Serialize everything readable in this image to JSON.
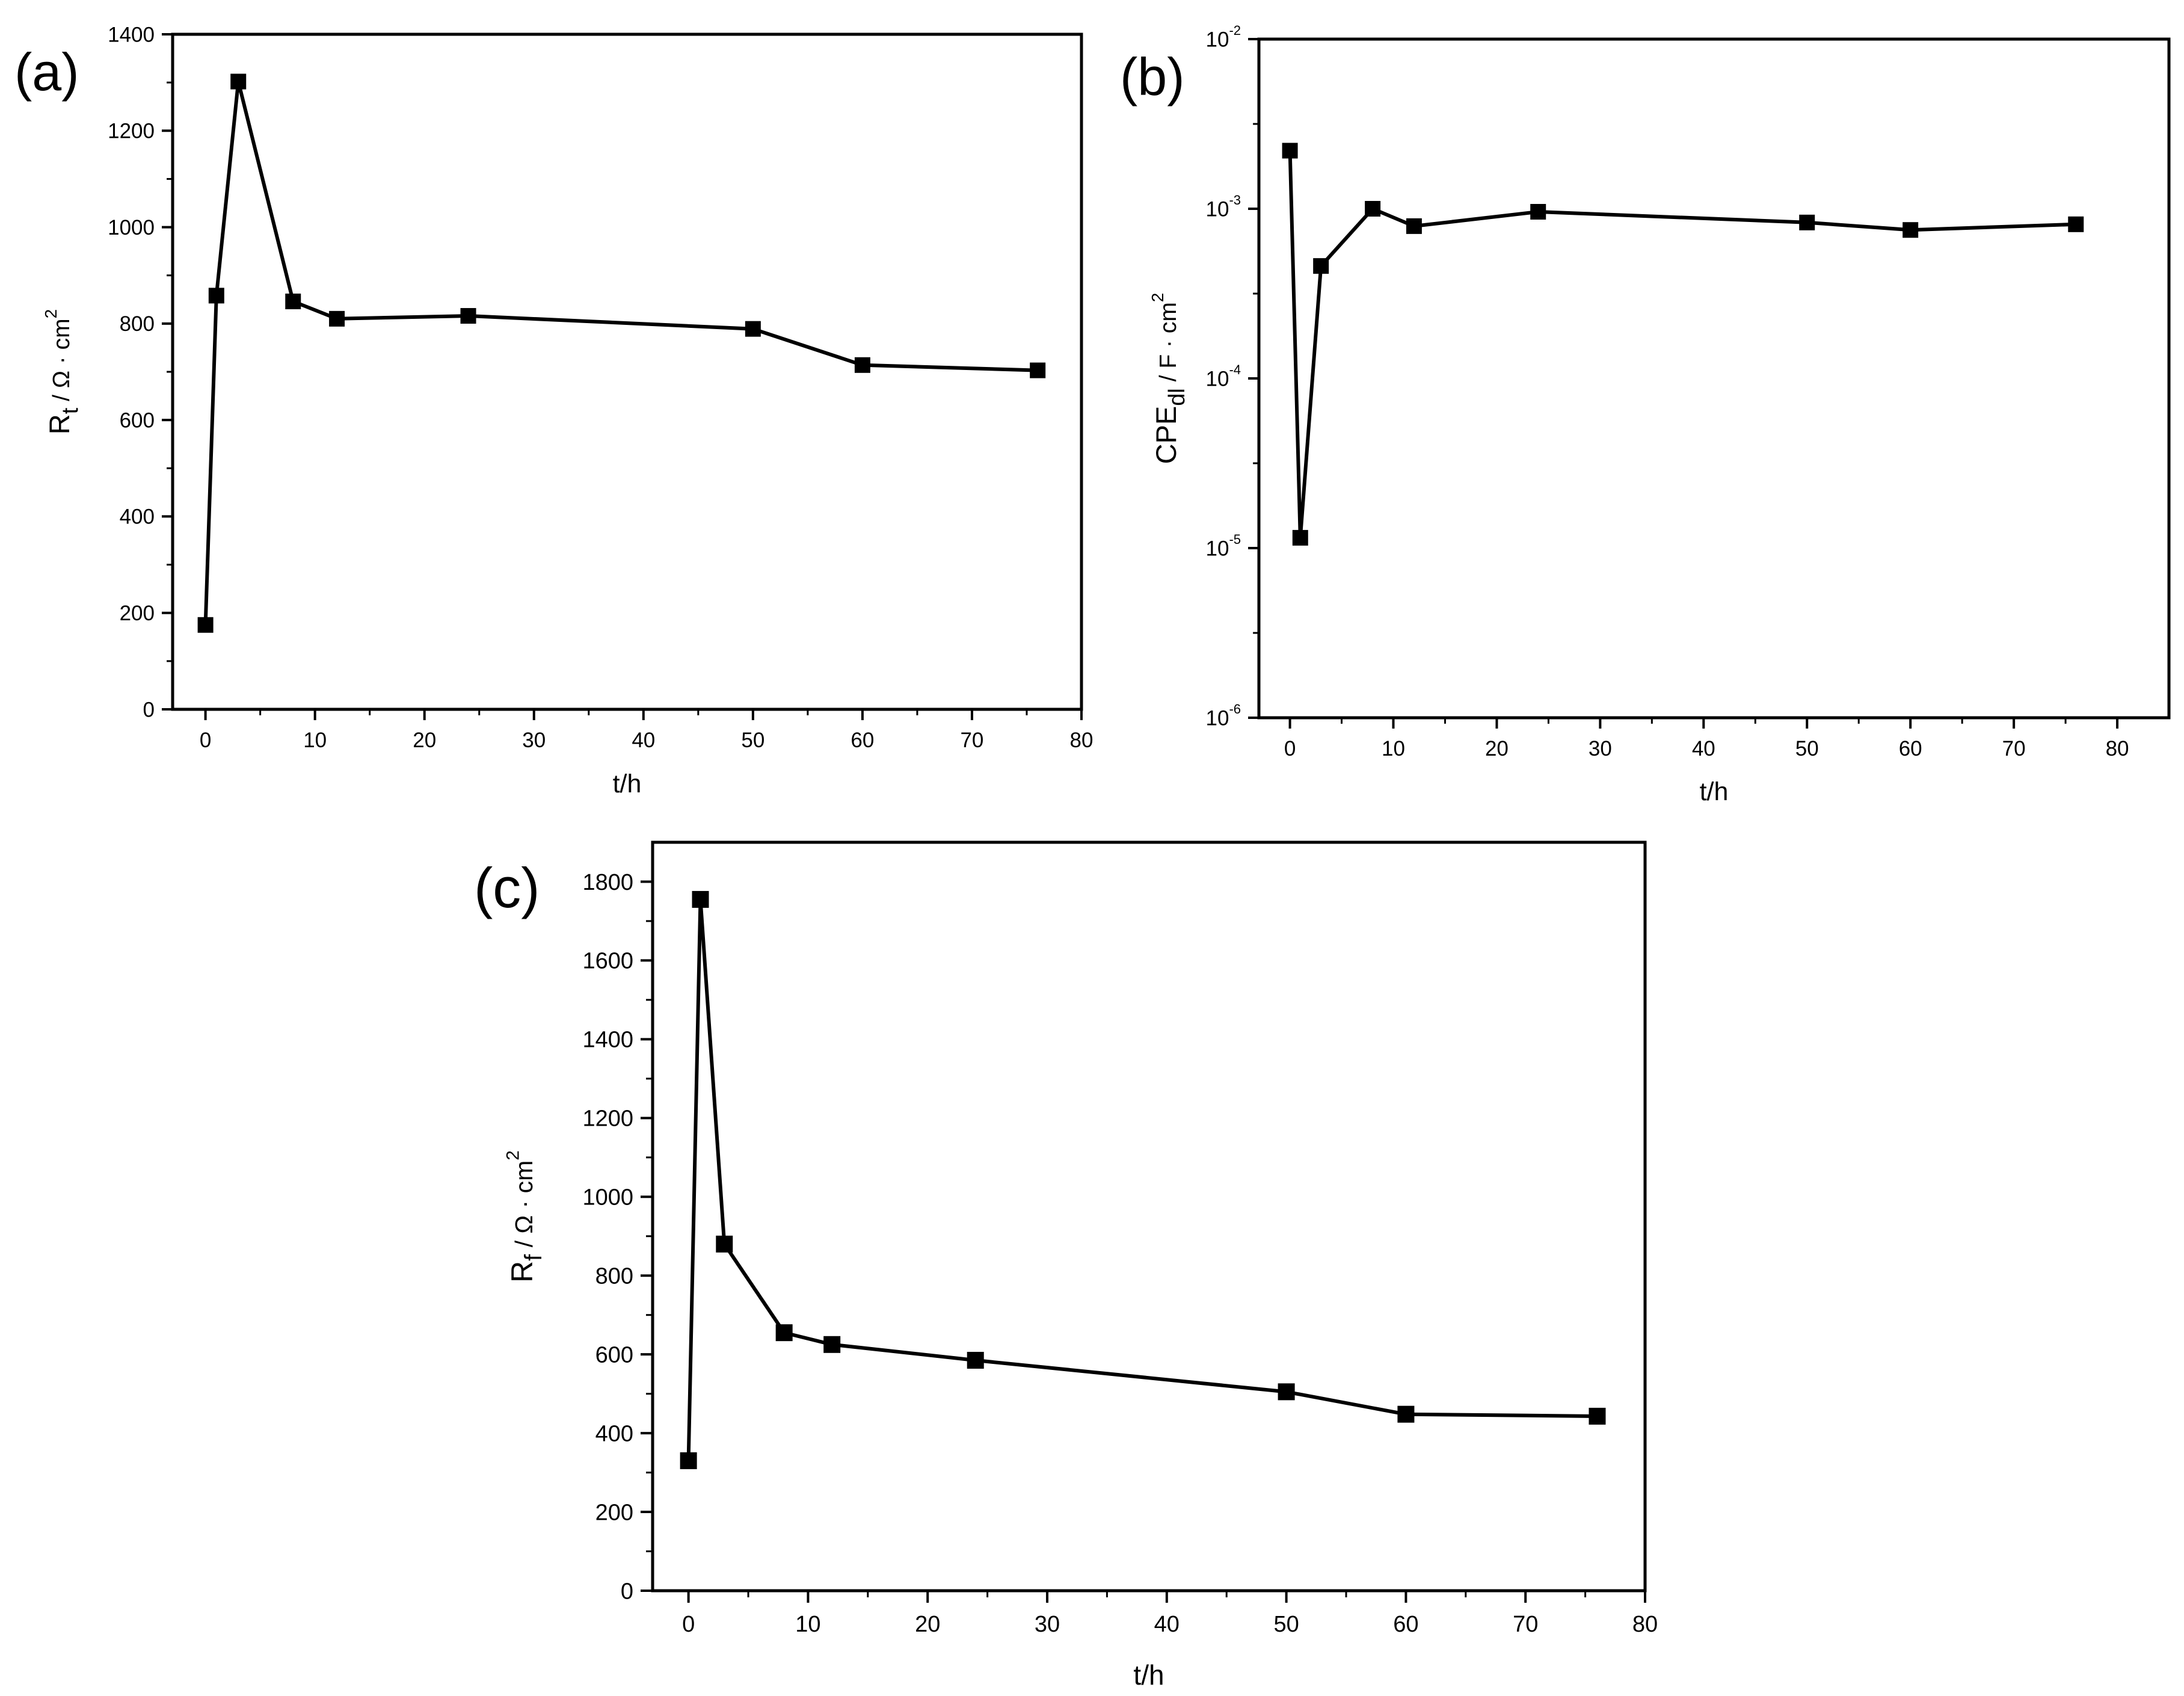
{
  "figure": {
    "colors": {
      "ink": "#000000",
      "background": "#ffffff"
    }
  },
  "chart_data": [
    {
      "panel": "(a)",
      "type": "line",
      "marker": "square",
      "xlabel": "t/h",
      "ylabel": {
        "main": "R",
        "sub": "t",
        "units": " / Ω · cm",
        "sup": "2"
      },
      "yscale": "linear",
      "xlim": [
        -3,
        80
      ],
      "ylim": [
        0,
        1400
      ],
      "xticks": [
        0,
        10,
        20,
        30,
        40,
        50,
        60,
        70,
        80
      ],
      "yticks": [
        0,
        200,
        400,
        600,
        800,
        1000,
        1200,
        1400
      ],
      "x": [
        0,
        1,
        3,
        8,
        12,
        24,
        50,
        60,
        76
      ],
      "y": [
        175,
        858,
        1302,
        846,
        810,
        816,
        789,
        714,
        703
      ]
    },
    {
      "panel": "(b)",
      "type": "line",
      "marker": "square",
      "xlabel": "t/h",
      "ylabel": {
        "main": "CPE",
        "sub": "dl",
        "units": " / F · cm",
        "sup": "2"
      },
      "yscale": "log",
      "xlim": [
        -3,
        85
      ],
      "ylim": [
        1e-06,
        0.01
      ],
      "xticks": [
        0,
        10,
        20,
        30,
        40,
        50,
        60,
        70,
        80
      ],
      "yticks": [
        {
          "value": 1e-06,
          "base": "10",
          "exp": "-6"
        },
        {
          "value": 1e-05,
          "base": "10",
          "exp": "-5"
        },
        {
          "value": 0.0001,
          "base": "10",
          "exp": "-4"
        },
        {
          "value": 0.001,
          "base": "10",
          "exp": "-3"
        },
        {
          "value": 0.01,
          "base": "10",
          "exp": "-2"
        }
      ],
      "x": [
        0,
        1,
        3,
        8,
        12,
        24,
        50,
        60,
        76
      ],
      "y": [
        0.0022,
        1.15e-05,
        0.00046,
        0.001,
        0.00079,
        0.00096,
        0.00083,
        0.00075,
        0.00081
      ]
    },
    {
      "panel": "(c)",
      "type": "line",
      "marker": "square",
      "xlabel": "t/h",
      "ylabel": {
        "main": "R",
        "sub": "f",
        "units": " / Ω · cm",
        "sup": "2"
      },
      "yscale": "linear",
      "xlim": [
        -3,
        80
      ],
      "ylim": [
        0,
        1900
      ],
      "xticks": [
        0,
        10,
        20,
        30,
        40,
        50,
        60,
        70,
        80
      ],
      "yticks": [
        0,
        200,
        400,
        600,
        800,
        1000,
        1200,
        1400,
        1600,
        1800
      ],
      "x": [
        0,
        1,
        3,
        8,
        12,
        24,
        50,
        60,
        76
      ],
      "y": [
        330,
        1755,
        880,
        655,
        625,
        585,
        505,
        448,
        443
      ]
    }
  ]
}
